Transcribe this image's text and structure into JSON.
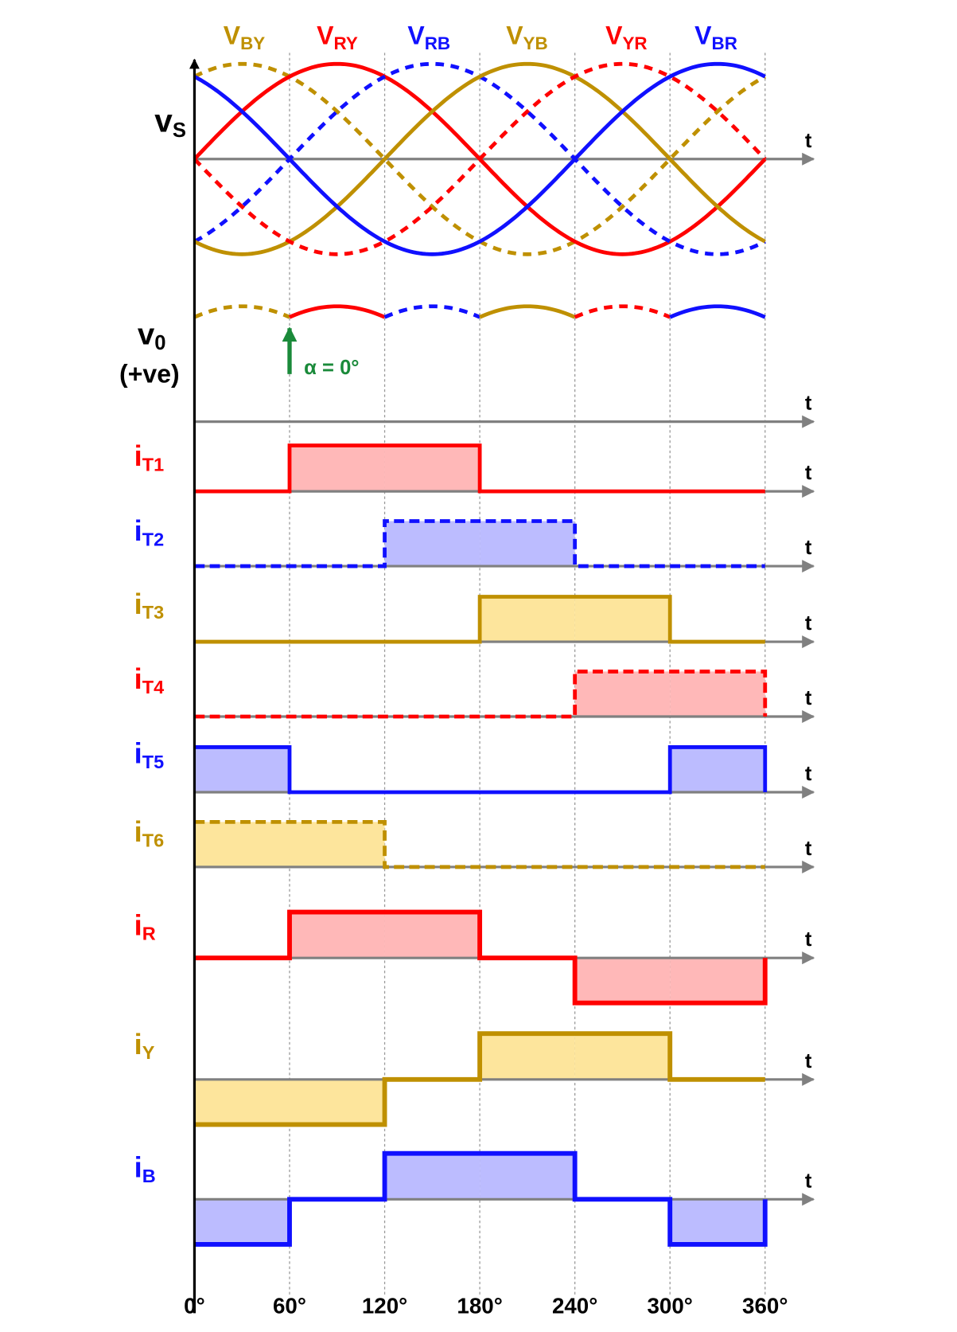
{
  "supply_labels": [
    {
      "main": "V",
      "sub": "BY"
    },
    {
      "main": "V",
      "sub": "RY"
    },
    {
      "main": "V",
      "sub": "RB"
    },
    {
      "main": "V",
      "sub": "YB"
    },
    {
      "main": "V",
      "sub": "YR"
    },
    {
      "main": "V",
      "sub": "BR"
    }
  ],
  "vs_label": {
    "main": "v",
    "sub": "S"
  },
  "v0_label": {
    "main": "v",
    "sub": "0",
    "note": "(+ve)"
  },
  "alpha_label": "α = 0°",
  "time_label": "t",
  "current_labels": [
    {
      "main": "i",
      "sub": "T1"
    },
    {
      "main": "i",
      "sub": "T2"
    },
    {
      "main": "i",
      "sub": "T3"
    },
    {
      "main": "i",
      "sub": "T4"
    },
    {
      "main": "i",
      "sub": "T5"
    },
    {
      "main": "i",
      "sub": "T6"
    },
    {
      "main": "i",
      "sub": "R"
    },
    {
      "main": "i",
      "sub": "Y"
    },
    {
      "main": "i",
      "sub": "B"
    }
  ],
  "angle_labels": [
    "0°",
    "60°",
    "120°",
    "180°",
    "240°",
    "300°",
    "360°"
  ]
}
